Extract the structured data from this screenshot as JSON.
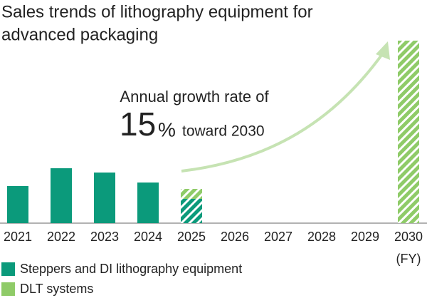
{
  "chart_data": {
    "type": "bar",
    "stacked": true,
    "title": [
      "Sales trends of lithography equipment for",
      "advanced packaging"
    ],
    "categories": [
      "2021",
      "2022",
      "2023",
      "2024",
      "2025",
      "2026",
      "2027",
      "2028",
      "2029",
      "2030"
    ],
    "x_unit": "(FY)",
    "series": [
      {
        "name": "Steppers and DI lithography equipment",
        "color": "#0b9a7b",
        "values": [
          52,
          77,
          71,
          57,
          34,
          null,
          null,
          null,
          null,
          null
        ]
      },
      {
        "name": "DLT systems",
        "color": "#8fcb68",
        "values": [
          null,
          null,
          null,
          null,
          14,
          null,
          null,
          null,
          null,
          256
        ]
      }
    ],
    "hatched_from_index": 4,
    "annotation": {
      "line1": "Annual growth rate of",
      "rate": "15",
      "rate_unit": "%",
      "line2": "toward 2030",
      "color": "#a6d38c"
    }
  }
}
